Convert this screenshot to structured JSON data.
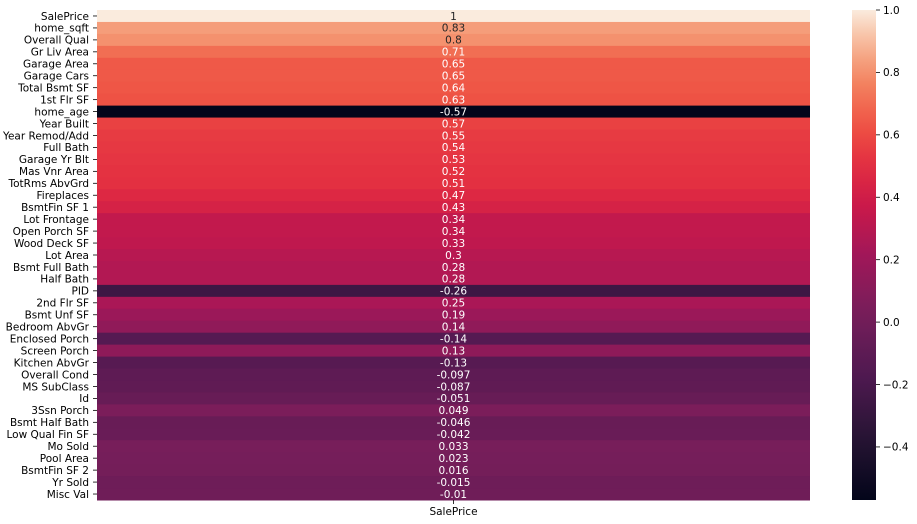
{
  "chart_data": {
    "type": "heatmap",
    "x_categories": [
      "SalePrice"
    ],
    "y_categories": [
      "SalePrice",
      "home_sqft",
      "Overall Qual",
      "Gr Liv Area",
      "Garage Area",
      "Garage Cars",
      "Total Bsmt SF",
      "1st Flr SF",
      "home_age",
      "Year Built",
      "Year Remod/Add",
      "Full Bath",
      "Garage Yr Blt",
      "Mas Vnr Area",
      "TotRms AbvGrd",
      "Fireplaces",
      "BsmtFin SF 1",
      "Lot Frontage",
      "Open Porch SF",
      "Wood Deck SF",
      "Lot Area",
      "Bsmt Full Bath",
      "Half Bath",
      "PID",
      "2nd Flr SF",
      "Bsmt Unf SF",
      "Bedroom AbvGr",
      "Enclosed Porch",
      "Screen Porch",
      "Kitchen AbvGr",
      "Overall Cond",
      "MS SubClass",
      "Id",
      "3Ssn Porch",
      "Bsmt Half Bath",
      "Low Qual Fin SF",
      "Mo Sold",
      "Pool Area",
      "BsmtFin SF 2",
      "Yr Sold",
      "Misc Val"
    ],
    "values": [
      1,
      0.83,
      0.8,
      0.71,
      0.65,
      0.65,
      0.64,
      0.63,
      -0.57,
      0.57,
      0.55,
      0.54,
      0.53,
      0.52,
      0.51,
      0.47,
      0.43,
      0.34,
      0.34,
      0.33,
      0.3,
      0.28,
      0.28,
      -0.26,
      0.25,
      0.19,
      0.14,
      -0.14,
      0.13,
      -0.13,
      -0.097,
      -0.087,
      -0.051,
      0.049,
      -0.046,
      -0.042,
      0.033,
      0.023,
      0.016,
      -0.015,
      -0.01
    ],
    "annotations": [
      "1",
      "0.83",
      "0.8",
      "0.71",
      "0.65",
      "0.65",
      "0.64",
      "0.63",
      "-0.57",
      "0.57",
      "0.55",
      "0.54",
      "0.53",
      "0.52",
      "0.51",
      "0.47",
      "0.43",
      "0.34",
      "0.34",
      "0.33",
      "0.3",
      "0.28",
      "0.28",
      "-0.26",
      "0.25",
      "0.19",
      "0.14",
      "-0.14",
      "0.13",
      "-0.13",
      "-0.097",
      "-0.087",
      "-0.051",
      "0.049",
      "-0.046",
      "-0.042",
      "0.033",
      "0.023",
      "0.016",
      "-0.015",
      "-0.01"
    ],
    "colorbar": {
      "vmin": -0.57,
      "vmax": 1.0,
      "ticks": [
        -0.4,
        -0.2,
        0.0,
        0.2,
        0.4,
        0.6,
        0.8,
        1.0
      ],
      "tick_labels": [
        "−0.4",
        "−0.2",
        "0.0",
        "0.2",
        "0.4",
        "0.6",
        "0.8",
        "1.0"
      ],
      "colormap": "rocket"
    },
    "title": "",
    "xlabel": "",
    "ylabel": ""
  }
}
